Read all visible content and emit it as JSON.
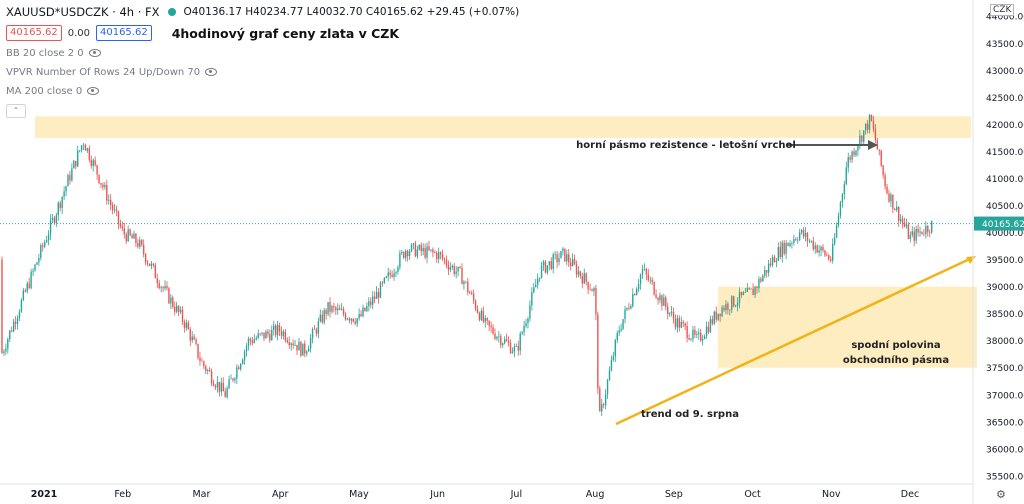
{
  "header": {
    "symbol": "XAUUSD*USDCZK · 4h · FX",
    "ohlc": "O40136.17 H40234.77 L40032.70 C40165.62 +29.45 (+0.07%)",
    "bid": "40165.62",
    "spread": "0.00",
    "ask": "40165.62",
    "title": "4hodinový graf ceny zlata v CZK"
  },
  "indicators": [
    "BB 20 close 2 0",
    "VPVR Number Of Rows 24 Up/Down 70",
    "MA 200 close 0"
  ],
  "currency": "CZK",
  "colors": {
    "up": "#26a69a",
    "down": "#ef5350",
    "zone": "#fce8b2",
    "trend": "#f0b418",
    "arrow": "#555555",
    "priceline": "#26a69a"
  },
  "chart_data": {
    "type": "candlestick",
    "title": "4hodinový graf ceny zlata v CZK",
    "y_axis_ticks": [
      44000,
      43500,
      43000,
      42500,
      42000,
      41500,
      41000,
      40500,
      40000,
      39500,
      39000,
      38500,
      38000,
      37500,
      37000,
      36500,
      36000,
      35500
    ],
    "y_axis_labels": [
      "44000.00",
      "43500.00",
      "43000.00",
      "42500.00",
      "42000.00",
      "41500.00",
      "41000.00",
      "40500.00",
      "40000.00",
      "39500.00",
      "39000.00",
      "38500.00",
      "38000.00",
      "37500.00",
      "37000.00",
      "36500.00",
      "36000.00",
      "35500.00"
    ],
    "x_axis_labels": [
      "2021",
      "Feb",
      "Mar",
      "Apr",
      "May",
      "Jun",
      "Jul",
      "Aug",
      "Sep",
      "Oct",
      "Nov",
      "Dec"
    ],
    "ylim": [
      35350,
      44300
    ],
    "last_price": 40165.62,
    "last_price_label": "40165.62",
    "price_path_months": [
      0,
      0.5,
      1,
      1.2,
      1.5,
      1.8,
      2,
      2.3,
      2.6,
      3,
      3.3,
      3.6,
      4,
      4.3,
      4.6,
      5,
      5.3,
      5.6,
      6,
      6.3,
      6.6,
      7,
      7.05,
      7.3,
      7.6,
      8,
      8.3,
      8.6,
      9,
      9.3,
      9.6,
      10,
      10.2,
      10.5,
      10.7,
      11,
      11.3
    ],
    "price_path_values": [
      39800,
      41700,
      40000,
      39800,
      39000,
      38300,
      37600,
      37000,
      38000,
      38200,
      37800,
      38600,
      38400,
      39000,
      39700,
      39600,
      39200,
      38300,
      37800,
      39300,
      39600,
      38900,
      36500,
      38200,
      39300,
      38400,
      38000,
      38600,
      38900,
      39600,
      40000,
      39500,
      41300,
      42100,
      40800,
      39900,
      40165
    ],
    "annotations": [
      {
        "text": "horní pásmo rezistence - letošní vrchol"
      },
      {
        "text": "spodní polovina"
      },
      {
        "text": "obchodního pásma"
      },
      {
        "text": "trend od 9. srpna"
      }
    ],
    "zones": [
      {
        "y": [
          41750,
          42150
        ]
      },
      {
        "y": [
          37500,
          39000
        ]
      }
    ],
    "grid": false
  }
}
